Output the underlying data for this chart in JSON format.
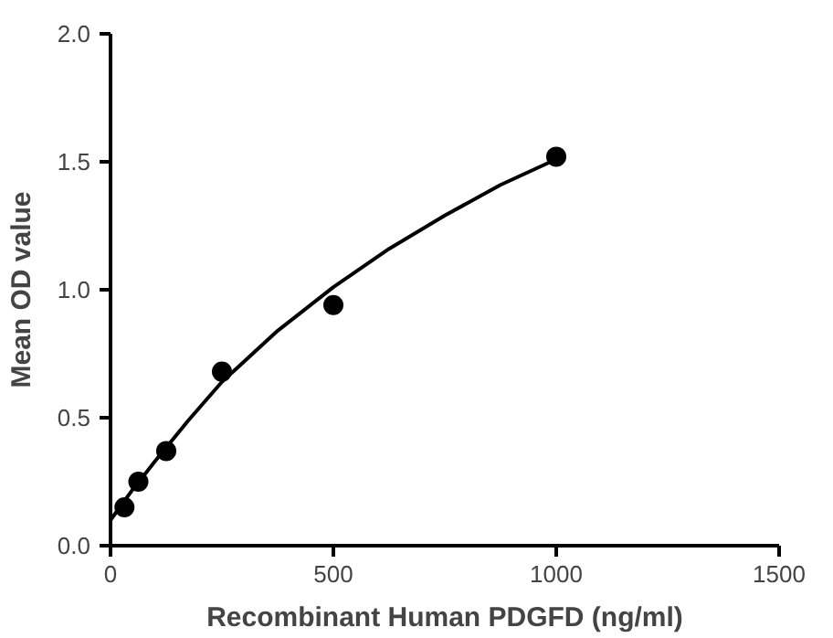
{
  "chart_data": {
    "type": "scatter",
    "xlabel": "Recombinant Human PDGFD (ng/ml)",
    "ylabel": "Mean OD value",
    "xlim": [
      0,
      1500
    ],
    "xticks": [
      0,
      500,
      1000,
      1500
    ],
    "ylim": [
      0,
      2.0
    ],
    "yticks": [
      {
        "value": 0,
        "label": "0.0"
      },
      {
        "value": 0.5,
        "label": "0.5"
      },
      {
        "value": 1.0,
        "label": "1.0"
      },
      {
        "value": 1.5,
        "label": "1.5"
      },
      {
        "value": 2.0,
        "label": "2.0"
      }
    ],
    "grid": false,
    "marker": "circle",
    "series": [
      {
        "color": "#000000",
        "x": [
          31.25,
          62.5,
          125,
          250,
          500,
          1000
        ],
        "values": [
          0.15,
          0.25,
          0.37,
          0.68,
          0.94,
          1.52
        ]
      },
      {
        "type": "line",
        "color": "#000000",
        "line_style": "solid",
        "marker": "none",
        "x": [
          0,
          50,
          100,
          175,
          250,
          375,
          500,
          625,
          750,
          875,
          1000
        ],
        "values": [
          0.1,
          0.22,
          0.33,
          0.49,
          0.64,
          0.84,
          1.01,
          1.16,
          1.29,
          1.41,
          1.51
        ]
      }
    ]
  }
}
